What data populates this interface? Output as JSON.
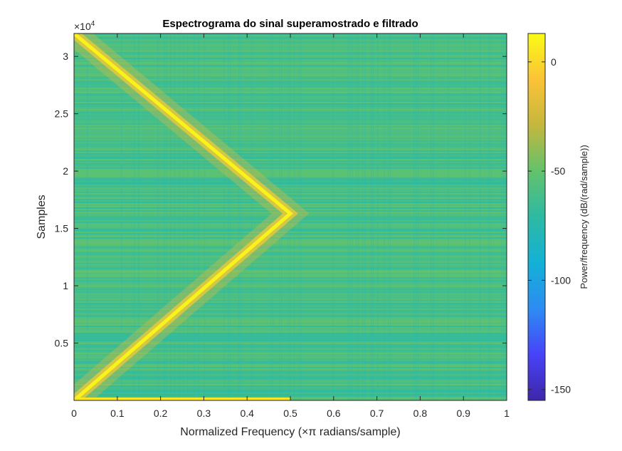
{
  "chart_data": {
    "type": "heatmap",
    "title": "Espectrograma do sinal superamostrado e filtrado",
    "xlabel_prefix": "Normalized Frequency (",
    "xlabel_times_pi": "×π",
    "xlabel_suffix": " radians/sample)",
    "ylabel": "Samples",
    "y_exponent_base": "×10",
    "y_exponent_power": "4",
    "xlim": [
      0,
      1
    ],
    "ylim": [
      0,
      32000
    ],
    "x_ticks": [
      0,
      0.1,
      0.2,
      0.3,
      0.4,
      0.5,
      0.6,
      0.7,
      0.8,
      0.9,
      1
    ],
    "x_tick_labels": [
      "0",
      "0.1",
      "0.2",
      "0.3",
      "0.4",
      "0.5",
      "0.6",
      "0.7",
      "0.8",
      "0.9",
      "1"
    ],
    "y_ticks": [
      5000,
      10000,
      15000,
      20000,
      25000,
      30000
    ],
    "y_tick_labels": [
      "0.5",
      "1",
      "1.5",
      "2",
      "2.5",
      "3"
    ],
    "ridge": {
      "description_points": [
        {
          "samples": 0,
          "frequency": 0.0
        },
        {
          "samples": 16300,
          "frequency": 0.5
        },
        {
          "samples": 32000,
          "frequency": 0.0
        }
      ],
      "peak_power_db": 10
    },
    "bottom_row": {
      "samples": 0,
      "frequency_range": [
        0,
        0.5
      ],
      "power_db": 5
    },
    "background_power_db": -60,
    "colorbar": {
      "label": "Power/frequency (dB/(rad/sample))",
      "clim": [
        -155,
        13
      ],
      "ticks": [
        0,
        -50,
        -100,
        -150
      ],
      "tick_labels": [
        "0",
        "-50",
        "-100",
        "-150"
      ],
      "colormap": "parula"
    }
  }
}
